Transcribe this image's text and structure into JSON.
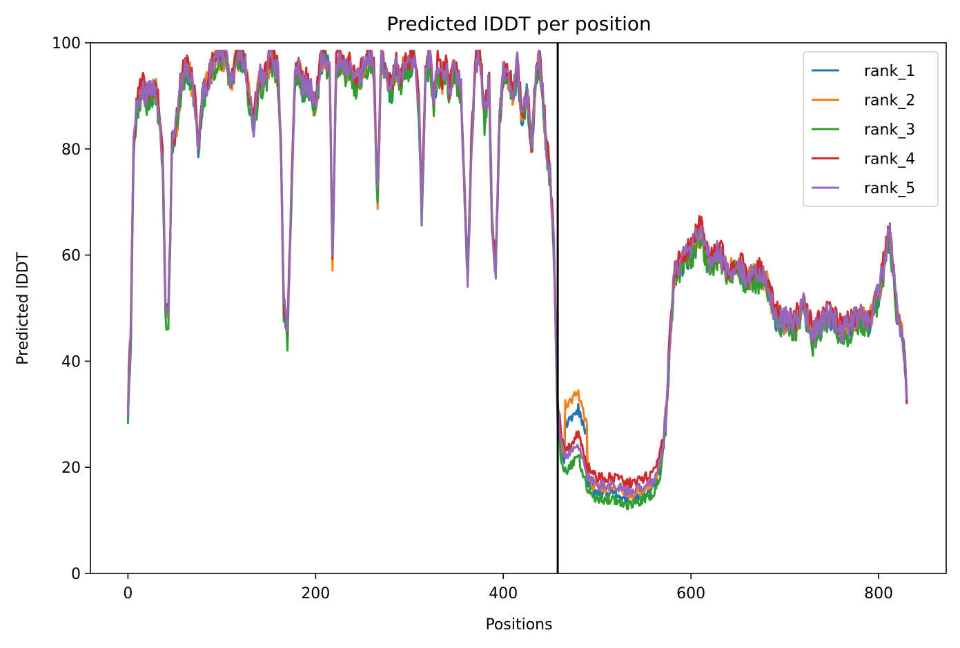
{
  "chart_data": {
    "type": "line",
    "title": "Predicted lDDT per position",
    "xlabel": "Positions",
    "ylabel": "Predicted lDDT",
    "xlim": [
      -40,
      872
    ],
    "ylim": [
      0,
      100
    ],
    "xticks": [
      0,
      200,
      400,
      600,
      800
    ],
    "yticks": [
      0,
      20,
      40,
      60,
      80,
      100
    ],
    "vline_x": 458,
    "legend_position": "top-right",
    "grid": false,
    "base_curve": [
      [
        0,
        30
      ],
      [
        3,
        45
      ],
      [
        6,
        80
      ],
      [
        10,
        88
      ],
      [
        15,
        91
      ],
      [
        20,
        89
      ],
      [
        25,
        90
      ],
      [
        30,
        91
      ],
      [
        34,
        85
      ],
      [
        37,
        77
      ],
      [
        40,
        50
      ],
      [
        43,
        47
      ],
      [
        47,
        80
      ],
      [
        52,
        84
      ],
      [
        57,
        92
      ],
      [
        62,
        95
      ],
      [
        67,
        93
      ],
      [
        72,
        87
      ],
      [
        75,
        80
      ],
      [
        80,
        90
      ],
      [
        85,
        92
      ],
      [
        90,
        95
      ],
      [
        95,
        97
      ],
      [
        100,
        96
      ],
      [
        105,
        97
      ],
      [
        110,
        92
      ],
      [
        115,
        96
      ],
      [
        120,
        97
      ],
      [
        125,
        96
      ],
      [
        130,
        88
      ],
      [
        134,
        84
      ],
      [
        140,
        93
      ],
      [
        145,
        92
      ],
      [
        150,
        95
      ],
      [
        155,
        97
      ],
      [
        160,
        93
      ],
      [
        163,
        80
      ],
      [
        166,
        50
      ],
      [
        170,
        45
      ],
      [
        174,
        70
      ],
      [
        178,
        93
      ],
      [
        182,
        95
      ],
      [
        186,
        91
      ],
      [
        190,
        92
      ],
      [
        195,
        90
      ],
      [
        200,
        87
      ],
      [
        205,
        96
      ],
      [
        210,
        97
      ],
      [
        215,
        95
      ],
      [
        218,
        58
      ],
      [
        222,
        95
      ],
      [
        227,
        97
      ],
      [
        232,
        94
      ],
      [
        237,
        95
      ],
      [
        242,
        92
      ],
      [
        247,
        93
      ],
      [
        252,
        95
      ],
      [
        257,
        97
      ],
      [
        262,
        95
      ],
      [
        266,
        70
      ],
      [
        270,
        97
      ],
      [
        275,
        94
      ],
      [
        280,
        90
      ],
      [
        285,
        95
      ],
      [
        290,
        92
      ],
      [
        295,
        96
      ],
      [
        300,
        95
      ],
      [
        305,
        97
      ],
      [
        310,
        88
      ],
      [
        313,
        67
      ],
      [
        317,
        93
      ],
      [
        322,
        97
      ],
      [
        326,
        88
      ],
      [
        330,
        95
      ],
      [
        335,
        92
      ],
      [
        339,
        96
      ],
      [
        343,
        90
      ],
      [
        347,
        95
      ],
      [
        351,
        93
      ],
      [
        355,
        90
      ],
      [
        358,
        75
      ],
      [
        362,
        55
      ],
      [
        366,
        80
      ],
      [
        370,
        95
      ],
      [
        375,
        97
      ],
      [
        380,
        85
      ],
      [
        385,
        92
      ],
      [
        388,
        65
      ],
      [
        392,
        57
      ],
      [
        396,
        85
      ],
      [
        400,
        94
      ],
      [
        405,
        93
      ],
      [
        410,
        90
      ],
      [
        415,
        95
      ],
      [
        420,
        85
      ],
      [
        425,
        90
      ],
      [
        430,
        80
      ],
      [
        435,
        93
      ],
      [
        438,
        97
      ],
      [
        442,
        90
      ],
      [
        446,
        80
      ],
      [
        450,
        75
      ],
      [
        454,
        60
      ],
      [
        458,
        30
      ],
      [
        462,
        22
      ],
      [
        468,
        20
      ],
      [
        474,
        22
      ],
      [
        480,
        23
      ],
      [
        485,
        20
      ],
      [
        490,
        17
      ],
      [
        500,
        15
      ],
      [
        510,
        15
      ],
      [
        520,
        15
      ],
      [
        530,
        14
      ],
      [
        540,
        14
      ],
      [
        550,
        15
      ],
      [
        560,
        16
      ],
      [
        568,
        20
      ],
      [
        574,
        30
      ],
      [
        578,
        45
      ],
      [
        582,
        55
      ],
      [
        590,
        58
      ],
      [
        600,
        60
      ],
      [
        610,
        64
      ],
      [
        620,
        58
      ],
      [
        630,
        60
      ],
      [
        640,
        56
      ],
      [
        650,
        58
      ],
      [
        660,
        55
      ],
      [
        670,
        56
      ],
      [
        680,
        55
      ],
      [
        690,
        48
      ],
      [
        700,
        47
      ],
      [
        710,
        46
      ],
      [
        720,
        50
      ],
      [
        730,
        44
      ],
      [
        740,
        47
      ],
      [
        750,
        48
      ],
      [
        760,
        45
      ],
      [
        770,
        46
      ],
      [
        780,
        48
      ],
      [
        790,
        47
      ],
      [
        800,
        52
      ],
      [
        808,
        60
      ],
      [
        812,
        64
      ],
      [
        816,
        55
      ],
      [
        820,
        48
      ],
      [
        825,
        45
      ],
      [
        828,
        40
      ],
      [
        830,
        32
      ]
    ],
    "series": [
      {
        "name": "rank_1",
        "color": "#1f77b4",
        "offset": 0.0,
        "jitter": 2.2,
        "seed": 11
      },
      {
        "name": "rank_2",
        "color": "#ff7f0e",
        "offset": 0.5,
        "jitter": 2.4,
        "seed": 23
      },
      {
        "name": "rank_3",
        "color": "#2ca02c",
        "offset": -0.5,
        "jitter": 2.6,
        "seed": 37
      },
      {
        "name": "rank_4",
        "color": "#d62728",
        "offset": 1.5,
        "jitter": 2.3,
        "seed": 41
      },
      {
        "name": "rank_5",
        "color": "#9467bd",
        "offset": 0.8,
        "jitter": 2.5,
        "seed": 59
      }
    ],
    "n_positions": 831
  }
}
